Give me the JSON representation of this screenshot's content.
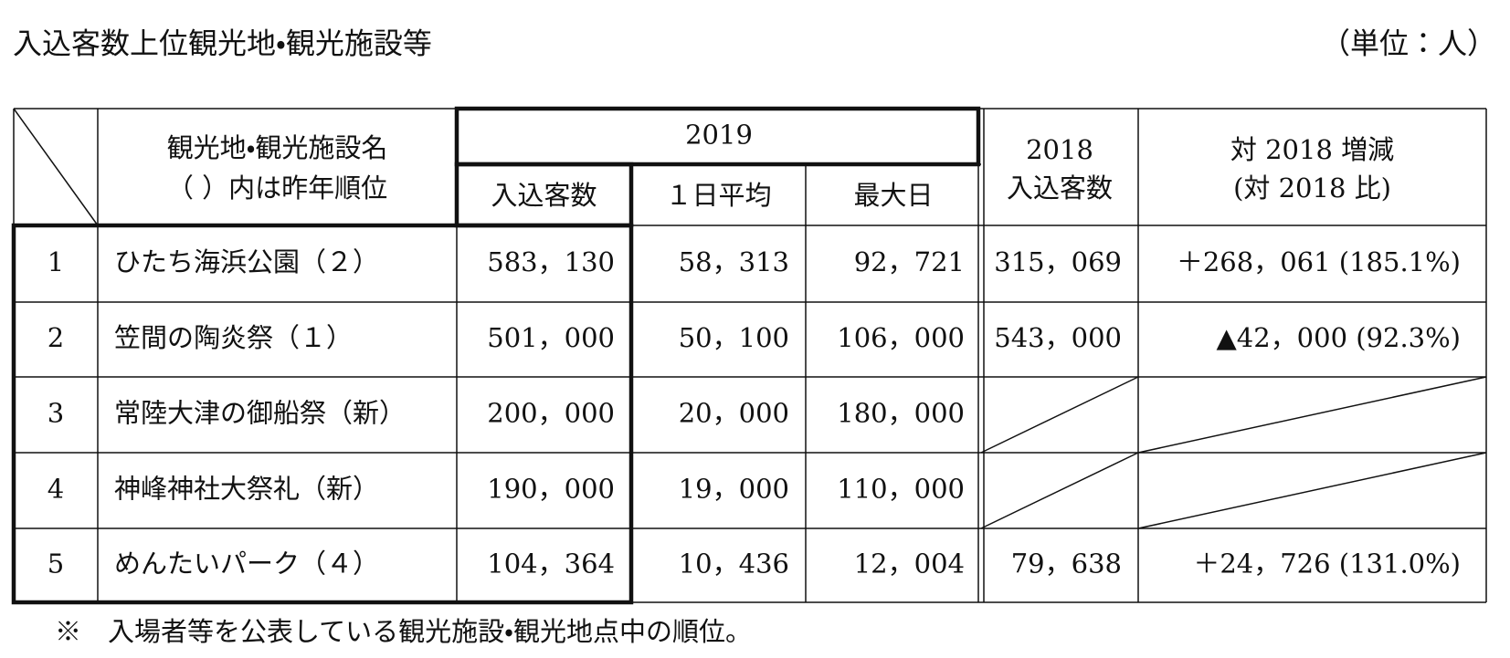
{
  "header": {
    "title": "入込客数上位観光地・観光施設等",
    "unit": "（単位：人）"
  },
  "table": {
    "columns": {
      "name": [
        "観光地・観光施設名",
        "（ ）内は昨年順位"
      ],
      "group_2019": "2019",
      "visitors_2019": "入込客数",
      "daily_avg": "１日平均",
      "max_day": "最大日",
      "visitors_2018": [
        "2018",
        "入込客数"
      ],
      "change": [
        "対 2018 増減",
        "(対 2018 比)"
      ]
    },
    "rows": [
      [
        "1",
        "ひたち海浜公園（２）",
        "583，130",
        "58，313",
        "92，721",
        "315，069",
        "＋268，061 (185.1%)"
      ],
      [
        "2",
        "笠間の陶炎祭（１）",
        "501，000",
        "50，100",
        "106，000",
        "543，000",
        "▲42，000 (92.3%)"
      ],
      [
        "3",
        "常陸大津の御船祭（新）",
        "200，000",
        "20，000",
        "180，000",
        null,
        null
      ],
      [
        "4",
        "神峰神社大祭礼（新）",
        "190，000",
        "19，000",
        "110，000",
        null,
        null
      ],
      [
        "5",
        "めんたいパーク（４）",
        "104，364",
        "10，436",
        "12，004",
        "79，638",
        "＋24，726 (131.0%)"
      ]
    ]
  },
  "footnote": "※　入場者等を公表している観光施設・観光地点中の順位。"
}
